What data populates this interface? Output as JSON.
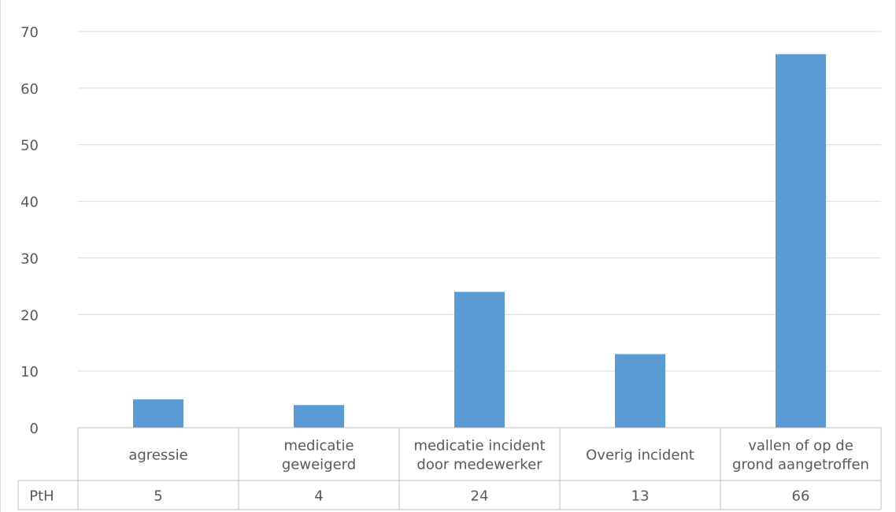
{
  "chart_data": {
    "type": "bar",
    "categories": [
      [
        "agressie"
      ],
      [
        "medicatie",
        "geweigerd"
      ],
      [
        "medicatie incident",
        "door medewerker"
      ],
      [
        "Overig incident"
      ],
      [
        "vallen of op de",
        "grond aangetroffen"
      ]
    ],
    "series": [
      {
        "name": "PtH",
        "values": [
          5,
          4,
          24,
          13,
          66
        ]
      }
    ],
    "ylim": [
      0,
      70
    ],
    "yticks": [
      0,
      10,
      20,
      30,
      40,
      50,
      60,
      70
    ],
    "grid": true,
    "data_table": true,
    "bar_color": "#5b9bd5"
  }
}
